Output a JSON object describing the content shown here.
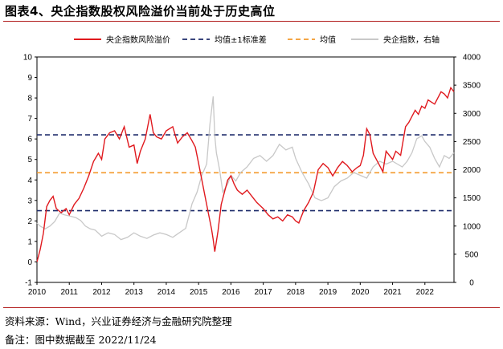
{
  "header": {
    "title": "图表4、央企指数股权风险溢价当前处于历史高位"
  },
  "footer": {
    "source": "资料来源：Wind，兴业证券经济与金融研究院整理",
    "note": "备注：图中数据截至 2022/11/24"
  },
  "colors": {
    "premium": "#e0191e",
    "band": "#1f2d6b",
    "mean": "#f39a2b",
    "index": "#c8c8c8",
    "accent_rule": "#b11b1b"
  },
  "chart_data": {
    "type": "line",
    "title": "央企指数股权风险溢价当前处于历史高位",
    "legend": [
      "央企指数风险溢价",
      "均值±1标准差",
      "均值",
      "央企指数，右轴"
    ],
    "x_ticks": [
      "2010",
      "2011",
      "2012",
      "2013",
      "2014",
      "2015",
      "2016",
      "2017",
      "2018",
      "2019",
      "2020",
      "2021",
      "2022"
    ],
    "x_range": [
      2010.0,
      2022.9
    ],
    "ylim_left": [
      -1,
      10
    ],
    "yticks_left": [
      "-1",
      "0",
      "1",
      "2",
      "3",
      "4",
      "5",
      "6",
      "7",
      "8",
      "9",
      "10"
    ],
    "ylim_right": [
      0,
      4000
    ],
    "yticks_right": [
      "0",
      "500",
      "1000",
      "1500",
      "2000",
      "2500",
      "3000",
      "3500",
      "4000"
    ],
    "mean": 4.35,
    "mean_plus_1sd": 6.2,
    "mean_minus_1sd": 2.5,
    "series": [
      {
        "name": "央企指数风险溢价",
        "axis": "left",
        "x": [
          2010.0,
          2010.1,
          2010.2,
          2010.3,
          2010.4,
          2010.5,
          2010.6,
          2010.75,
          2010.9,
          2011.0,
          2011.15,
          2011.3,
          2011.45,
          2011.6,
          2011.75,
          2011.9,
          2012.0,
          2012.1,
          2012.25,
          2012.4,
          2012.55,
          2012.7,
          2012.85,
          2013.0,
          2013.1,
          2013.2,
          2013.35,
          2013.5,
          2013.6,
          2013.7,
          2013.85,
          2014.0,
          2014.2,
          2014.35,
          2014.5,
          2014.65,
          2014.8,
          2014.9,
          2015.0,
          2015.1,
          2015.2,
          2015.3,
          2015.4,
          2015.45,
          2015.5,
          2015.6,
          2015.7,
          2015.8,
          2015.9,
          2016.0,
          2016.1,
          2016.2,
          2016.35,
          2016.5,
          2016.65,
          2016.8,
          2017.0,
          2017.15,
          2017.3,
          2017.45,
          2017.6,
          2017.75,
          2017.9,
          2018.0,
          2018.1,
          2018.25,
          2018.4,
          2018.55,
          2018.7,
          2018.85,
          2019.0,
          2019.15,
          2019.3,
          2019.45,
          2019.6,
          2019.75,
          2019.9,
          2020.0,
          2020.1,
          2020.2,
          2020.3,
          2020.4,
          2020.5,
          2020.6,
          2020.7,
          2020.8,
          2020.9,
          2021.0,
          2021.1,
          2021.25,
          2021.4,
          2021.5,
          2021.6,
          2021.7,
          2021.8,
          2021.9,
          2022.0,
          2022.1,
          2022.2,
          2022.3,
          2022.4,
          2022.5,
          2022.6,
          2022.7,
          2022.8,
          2022.9
        ],
        "values": [
          0.0,
          0.6,
          1.4,
          2.7,
          3.0,
          3.2,
          2.6,
          2.4,
          2.6,
          2.3,
          2.8,
          3.1,
          3.6,
          4.2,
          4.9,
          5.3,
          5.0,
          6.0,
          6.3,
          6.4,
          6.0,
          6.6,
          5.6,
          5.7,
          4.8,
          5.4,
          6.0,
          7.2,
          6.3,
          6.1,
          6.0,
          6.4,
          6.6,
          5.8,
          6.1,
          6.3,
          5.9,
          5.6,
          4.8,
          4.0,
          3.2,
          2.4,
          1.6,
          1.1,
          0.5,
          1.5,
          2.8,
          3.4,
          4.0,
          4.2,
          3.8,
          3.5,
          3.3,
          3.5,
          3.2,
          2.9,
          2.6,
          2.3,
          2.1,
          2.2,
          2.0,
          2.3,
          2.2,
          2.0,
          1.9,
          2.5,
          2.9,
          3.4,
          4.5,
          4.8,
          4.6,
          4.2,
          4.6,
          4.9,
          4.7,
          4.4,
          4.6,
          4.7,
          5.2,
          6.5,
          6.2,
          5.3,
          5.0,
          4.7,
          4.4,
          5.4,
          5.2,
          5.0,
          5.4,
          5.2,
          6.6,
          6.8,
          7.1,
          7.4,
          7.2,
          7.6,
          7.5,
          7.9,
          7.8,
          7.7,
          8.0,
          8.3,
          8.2,
          8.0,
          8.5,
          8.3
        ]
      },
      {
        "name": "央企指数，右轴",
        "axis": "right",
        "x": [
          2010.0,
          2010.1,
          2010.25,
          2010.4,
          2010.55,
          2010.7,
          2010.85,
          2011.0,
          2011.2,
          2011.35,
          2011.5,
          2011.65,
          2011.8,
          2012.0,
          2012.2,
          2012.4,
          2012.6,
          2012.8,
          2013.0,
          2013.2,
          2013.4,
          2013.6,
          2013.8,
          2014.0,
          2014.2,
          2014.4,
          2014.6,
          2014.8,
          2014.95,
          2015.1,
          2015.25,
          2015.35,
          2015.45,
          2015.5,
          2015.55,
          2015.65,
          2015.75,
          2015.9,
          2016.0,
          2016.15,
          2016.3,
          2016.5,
          2016.7,
          2016.9,
          2017.1,
          2017.3,
          2017.5,
          2017.7,
          2017.9,
          2018.0,
          2018.2,
          2018.4,
          2018.6,
          2018.8,
          2019.0,
          2019.2,
          2019.4,
          2019.6,
          2019.8,
          2020.0,
          2020.2,
          2020.4,
          2020.6,
          2020.8,
          2021.0,
          2021.15,
          2021.3,
          2021.45,
          2021.6,
          2021.75,
          2021.9,
          2022.0,
          2022.15,
          2022.3,
          2022.45,
          2022.6,
          2022.75,
          2022.9
        ],
        "values": [
          1050,
          1000,
          950,
          1000,
          1080,
          1230,
          1200,
          1180,
          1150,
          1100,
          1000,
          950,
          930,
          820,
          880,
          850,
          760,
          800,
          880,
          820,
          780,
          840,
          880,
          850,
          800,
          880,
          960,
          1400,
          1600,
          1900,
          2100,
          2800,
          3300,
          2600,
          2300,
          2000,
          1600,
          1750,
          1900,
          1800,
          1950,
          2050,
          2200,
          2250,
          2150,
          2250,
          2450,
          2350,
          2400,
          2200,
          1950,
          1750,
          1500,
          1450,
          1500,
          1700,
          1800,
          1850,
          1950,
          1900,
          1850,
          2050,
          2150,
          2100,
          2150,
          2100,
          2050,
          2150,
          2300,
          2550,
          2600,
          2500,
          2400,
          2200,
          2050,
          2250,
          2200,
          2300
        ]
      }
    ]
  }
}
